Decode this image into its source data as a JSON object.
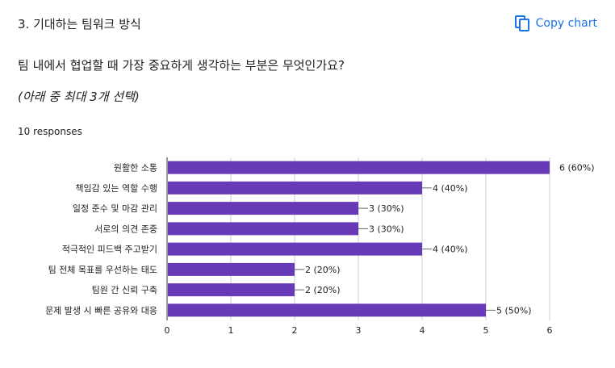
{
  "header": {
    "title": "3.  기대하는 팀워크 방식",
    "copy_label": "Copy chart",
    "copy_icon": "copy-icon"
  },
  "question": "팀 내에서 협업할 때 가장 중요하게 생각하는 부분은 무엇인가요?",
  "note": "(아래 중 최대 3개 선택)",
  "responses": "10 responses",
  "colors": {
    "bar": "#673ab7",
    "accent": "#1a73e8"
  },
  "chart_data": {
    "type": "bar",
    "orientation": "horizontal",
    "categories": [
      "원활한 소통",
      "책임감 있는 역할 수행",
      "일정 준수 및 마감 관리",
      "서로의 의견 존중",
      "적극적인 피드백 주고받기",
      "팀 전체 목표를 우선하는 태도",
      "팀원 간 신뢰 구축",
      "문제 발생 시 빠른 공유와 대응"
    ],
    "values": [
      6,
      4,
      3,
      3,
      4,
      2,
      2,
      5
    ],
    "data_labels": [
      "6 (60%)",
      "4 (40%)",
      "3 (30%)",
      "3 (30%)",
      "4 (40%)",
      "2 (20%)",
      "2 (20%)",
      "5 (50%)"
    ],
    "xlim": [
      0,
      6
    ],
    "xticks": [
      "0",
      "1",
      "2",
      "3",
      "4",
      "5",
      "6"
    ],
    "grid": true
  }
}
